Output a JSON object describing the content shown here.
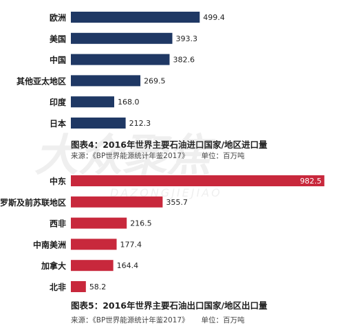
{
  "chart_data": [
    {
      "type": "bar",
      "orientation": "horizontal",
      "categories": [
        "欧洲",
        "美国",
        "中国",
        "其他亚太地区",
        "印度",
        "日本"
      ],
      "values": [
        499.4,
        393.3,
        382.6,
        269.5,
        168.0,
        212.3
      ],
      "value_labels": [
        "499.4",
        "393.3",
        "382.6",
        "269.5",
        "168.0",
        "212.3"
      ],
      "title": "图表4：2016年世界主要石油进口国家/地区进口量",
      "source": "来源：《BP世界能源统计年鉴2017》",
      "unit": "单位：百万吨",
      "color": "#1f3864",
      "xlim": [
        0,
        1000
      ],
      "grid": false,
      "legend": "none"
    },
    {
      "type": "bar",
      "orientation": "horizontal",
      "categories": [
        "中东",
        "俄罗斯及前苏联地区",
        "西非",
        "中南美洲",
        "加拿大",
        "北非"
      ],
      "values": [
        982.5,
        355.7,
        216.5,
        177.4,
        164.4,
        58.2
      ],
      "value_labels": [
        "982.5",
        "355.7",
        "216.5",
        "177.4",
        "164.4",
        "58.2"
      ],
      "title": "图表5：2016年世界主要石油出口国家/地区出口量",
      "source": "来源：《BP世界能源统计年鉴2017》",
      "unit": "单位：百万吨",
      "color": "#c8283c",
      "xlim": [
        0,
        1000
      ],
      "grid": false,
      "legend": "none"
    }
  ],
  "watermark": {
    "text": "大众聚焦",
    "subtext": "DAZONGJIEJIAO"
  }
}
